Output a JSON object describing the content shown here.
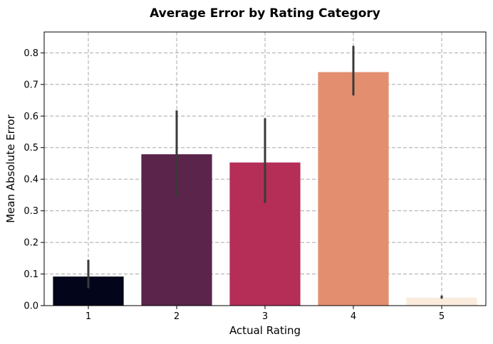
{
  "chart_data": {
    "type": "bar",
    "title": "Average Error by Rating Category",
    "xlabel": "Actual Rating",
    "ylabel": "Mean Absolute Error",
    "categories": [
      "1",
      "2",
      "3",
      "4",
      "5"
    ],
    "values": [
      0.092,
      0.479,
      0.453,
      0.739,
      0.025
    ],
    "error_low": [
      0.055,
      0.345,
      0.325,
      0.665,
      0.022
    ],
    "error_high": [
      0.145,
      0.618,
      0.593,
      0.822,
      0.032
    ],
    "colors": [
      "#03051a",
      "#5a244b",
      "#b42e58",
      "#e38f6f",
      "#faebdd"
    ],
    "ylim": [
      0,
      0.866
    ],
    "yticks": [
      "0.0",
      "0.1",
      "0.2",
      "0.3",
      "0.4",
      "0.5",
      "0.6",
      "0.7",
      "0.8"
    ],
    "grid": true
  }
}
